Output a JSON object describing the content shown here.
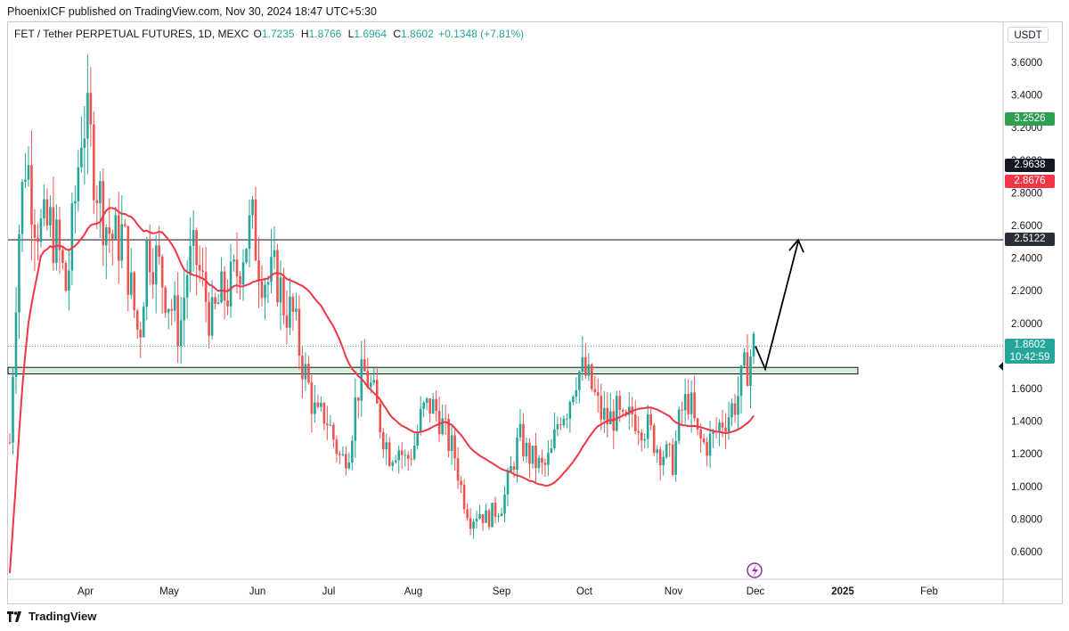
{
  "header": {
    "published": "PhoenixICF published on TradingView.com, Nov 30, 2024 18:47 UTC+5:30"
  },
  "legend": {
    "symbol": "FET / Tether PERPETUAL FUTURES, 1D, MEXC",
    "o_label": "O",
    "o_value": "1.7235",
    "h_label": "H",
    "h_value": "1.8766",
    "l_label": "L",
    "l_value": "1.6964",
    "c_label": "C",
    "c_value": "1.8602",
    "change": "+0.1348 (+7.81%)"
  },
  "axis": {
    "currency": "USDT",
    "price_ticks": [
      "3.6000",
      "3.4000",
      "3.2000",
      "3.0000",
      "2.8000",
      "2.6000",
      "2.4000",
      "2.2000",
      "2.0000",
      "1.8000",
      "1.6000",
      "1.4000",
      "1.2000",
      "1.0000",
      "0.8000",
      "0.6000"
    ],
    "time_ticks": [
      "Apr",
      "May",
      "Jun",
      "Jul",
      "Aug",
      "Sep",
      "Oct",
      "Nov",
      "Dec",
      "2025",
      "Feb"
    ]
  },
  "price_tags": [
    {
      "label": "3.2526",
      "color": "#2e9e4f"
    },
    {
      "label": "2.9638",
      "color": "#131722"
    },
    {
      "label": "2.8676",
      "color": "#f23645"
    },
    {
      "label": "2.5122",
      "color": "#2a2e39"
    },
    {
      "label": "1.8602",
      "color": "#26a69a",
      "sub": "10:42:59"
    }
  ],
  "footer": {
    "brand": "TradingView"
  },
  "chart_data": {
    "type": "candlestick",
    "symbol": "FET/USDT",
    "interval": "1D",
    "ylim": [
      0.5,
      3.8
    ],
    "x_axis": [
      "Apr",
      "May",
      "Jun",
      "Jul",
      "Aug",
      "Sep",
      "Oct",
      "Nov",
      "Dec",
      "2025",
      "Feb"
    ],
    "last_close": 1.8602,
    "horizontal_lines": [
      {
        "name": "resistance",
        "value": 2.5122
      }
    ],
    "support_zone": [
      1.69,
      1.73
    ],
    "projection_arrow": {
      "from_value": 1.86,
      "dip_value": 1.72,
      "target_value": 2.5122
    },
    "moving_average": "red line",
    "price_path": [
      1.27,
      2.5,
      3.05,
      2.7,
      2.55,
      2.6,
      2.45,
      2.2,
      2.7,
      3.3,
      3.1,
      2.8,
      2.6,
      2.5,
      2.55,
      2.2,
      1.9,
      2.5,
      2.4,
      2.25,
      2.1,
      1.95,
      2.35,
      2.4,
      2.2,
      2.0,
      2.15,
      2.2,
      2.3,
      2.5,
      2.6,
      2.35,
      2.25,
      2.3,
      2.1,
      2.05,
      1.8,
      1.6,
      1.4,
      1.45,
      1.3,
      1.15,
      1.25,
      1.6,
      1.7,
      1.55,
      1.35,
      1.2,
      1.25,
      1.15,
      1.25,
      1.45,
      1.5,
      1.45,
      1.3,
      1.2,
      0.95,
      0.8,
      0.85,
      0.8,
      0.85,
      0.9,
      1.1,
      1.3,
      1.2,
      1.15,
      1.1,
      1.2,
      1.45,
      1.5,
      1.7,
      1.7,
      1.6,
      1.45,
      1.4,
      1.45,
      1.35,
      1.45,
      1.4,
      1.35,
      1.25,
      1.2,
      1.15,
      1.45,
      1.55,
      1.3,
      1.25,
      1.3,
      1.4,
      1.45,
      1.55,
      1.72,
      1.86
    ]
  }
}
